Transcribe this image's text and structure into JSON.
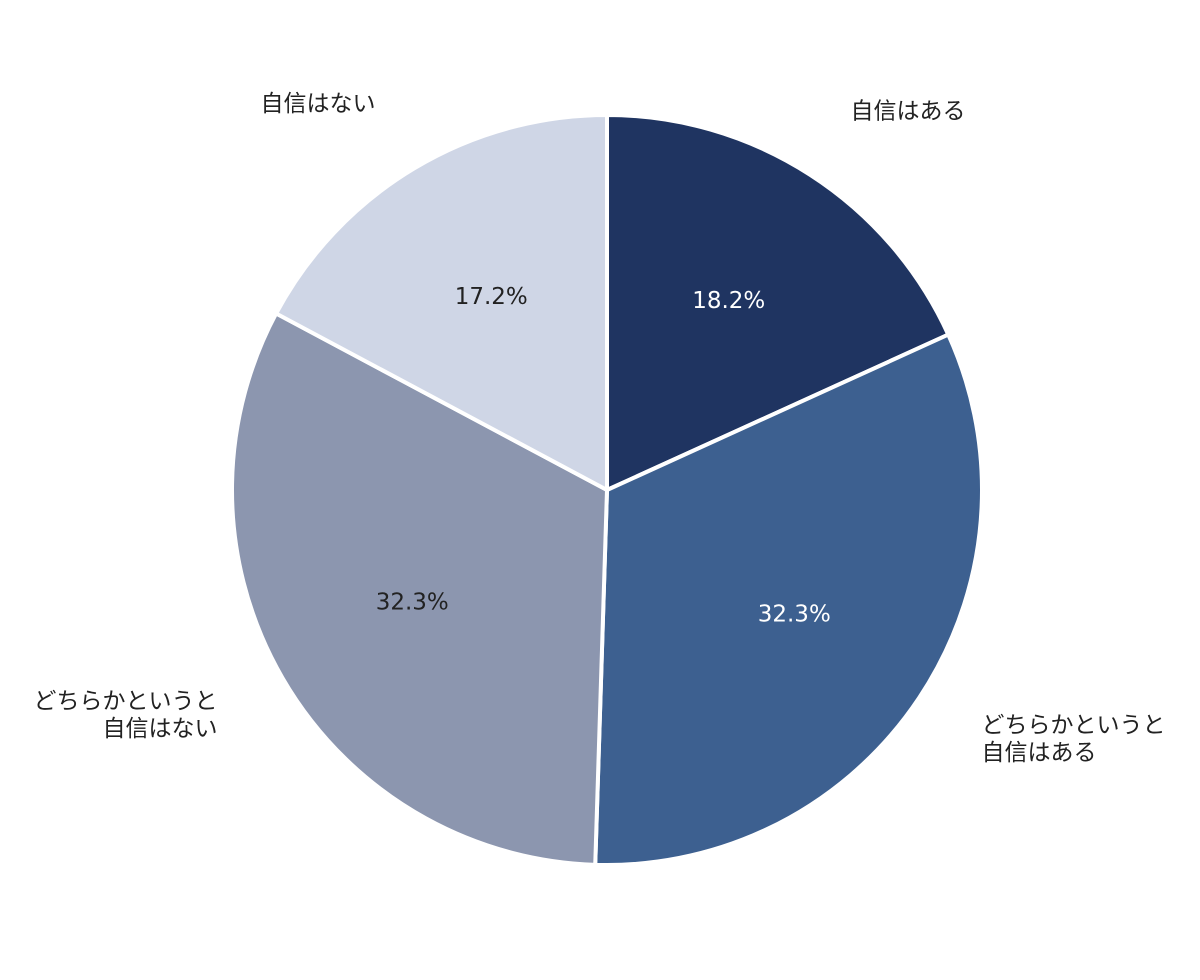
{
  "chart_data": {
    "type": "pie",
    "categories": [
      "自信はある",
      "どちらかというと\n自信はある",
      "どちらかというと\n自信はない",
      "自信はない"
    ],
    "values": [
      18.2,
      32.3,
      32.3,
      17.2
    ],
    "value_labels": [
      "18.2%",
      "32.3%",
      "32.3%",
      "17.2%"
    ],
    "colors": [
      "#1f3461",
      "#3d6090",
      "#8c96af",
      "#cfd6e6"
    ]
  }
}
